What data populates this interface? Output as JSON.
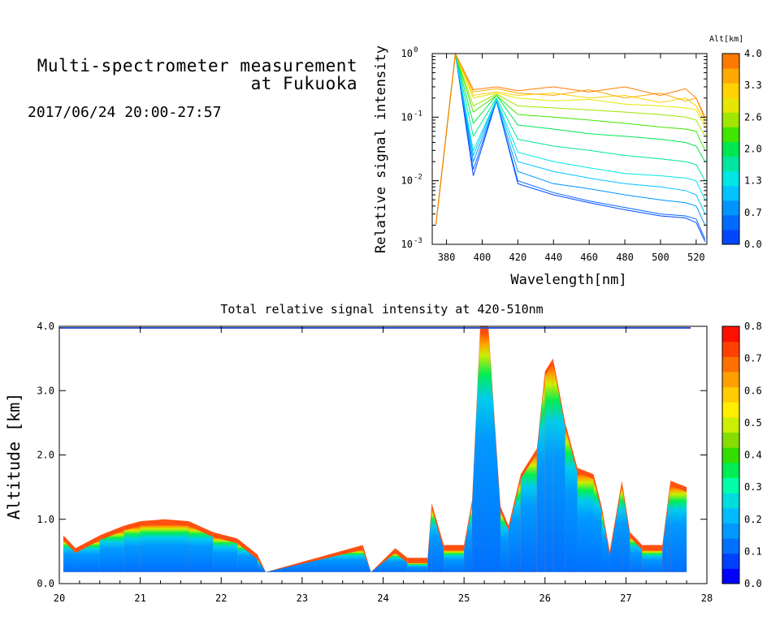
{
  "header": {
    "title_line1": "Multi-spectrometer measurement",
    "title_line2": "at Fukuoka",
    "datetime": "2017/06/24 20:00-27:57"
  },
  "colors": {
    "altitude_scale": [
      "#0047ff",
      "#006aff",
      "#0094ff",
      "#00c3ff",
      "#00e6e6",
      "#00e6a0",
      "#00e650",
      "#40e600",
      "#a0e600",
      "#e6e600",
      "#ffd200",
      "#ffaa00",
      "#ff7a00"
    ],
    "intensity_scale": [
      "#0000ff",
      "#0040ff",
      "#0070ff",
      "#0099ff",
      "#00bbff",
      "#00dddd",
      "#00ffaa",
      "#00ee55",
      "#33dd00",
      "#88dd00",
      "#ccee00",
      "#ffee00",
      "#ffcc00",
      "#ffa000",
      "#ff7000",
      "#ff4000",
      "#ff1000"
    ]
  },
  "chart_data": [
    {
      "type": "line",
      "title": "",
      "xlabel": "Wavelength[nm]",
      "ylabel": "Relative signal intensity",
      "yscale": "log",
      "xlim": [
        372,
        526
      ],
      "ylim": [
        0.001,
        1
      ],
      "xticks": [
        380,
        400,
        420,
        440,
        460,
        480,
        500,
        520
      ],
      "ytick_labels": {
        "base": "10",
        "exponents": [
          "0",
          "-1",
          "-2",
          "-3"
        ]
      },
      "colorbar": {
        "label": "Alt[km]",
        "tick_labels": [
          "4.0",
          "3.3",
          "2.6",
          "2.0",
          "1.3",
          "0.7",
          "0.0"
        ]
      },
      "x": [
        374,
        385,
        395,
        408,
        420,
        440,
        460,
        480,
        500,
        514,
        520,
        525
      ],
      "series": [
        {
          "alt": 0.0,
          "values": [
            0.002,
            1.0,
            0.012,
            0.18,
            0.009,
            0.006,
            0.0045,
            0.0035,
            0.0028,
            0.0026,
            0.0022,
            0.0011
          ]
        },
        {
          "alt": 0.3,
          "values": [
            0.002,
            1.0,
            0.015,
            0.18,
            0.01,
            0.0065,
            0.0048,
            0.0038,
            0.003,
            0.0028,
            0.0025,
            0.0012
          ]
        },
        {
          "alt": 0.6,
          "values": [
            0.002,
            1.0,
            0.02,
            0.18,
            0.014,
            0.009,
            0.0075,
            0.006,
            0.005,
            0.0045,
            0.004,
            0.002
          ]
        },
        {
          "alt": 0.9,
          "values": [
            0.002,
            1.0,
            0.025,
            0.19,
            0.02,
            0.014,
            0.011,
            0.009,
            0.008,
            0.007,
            0.006,
            0.003
          ]
        },
        {
          "alt": 1.2,
          "values": [
            0.002,
            1.0,
            0.03,
            0.19,
            0.028,
            0.02,
            0.016,
            0.013,
            0.012,
            0.011,
            0.01,
            0.005
          ]
        },
        {
          "alt": 1.6,
          "values": [
            0.002,
            1.0,
            0.05,
            0.2,
            0.045,
            0.035,
            0.03,
            0.025,
            0.022,
            0.02,
            0.018,
            0.01
          ]
        },
        {
          "alt": 1.9,
          "values": [
            0.002,
            1.0,
            0.08,
            0.22,
            0.075,
            0.065,
            0.055,
            0.05,
            0.045,
            0.04,
            0.035,
            0.02
          ]
        },
        {
          "alt": 2.3,
          "values": [
            0.002,
            1.0,
            0.12,
            0.22,
            0.11,
            0.1,
            0.09,
            0.08,
            0.07,
            0.065,
            0.06,
            0.03
          ]
        },
        {
          "alt": 2.7,
          "values": [
            0.002,
            1.0,
            0.15,
            0.23,
            0.15,
            0.14,
            0.13,
            0.12,
            0.11,
            0.1,
            0.09,
            0.05
          ]
        },
        {
          "alt": 3.0,
          "values": [
            0.002,
            1.0,
            0.2,
            0.24,
            0.2,
            0.18,
            0.19,
            0.16,
            0.15,
            0.14,
            0.13,
            0.07
          ]
        },
        {
          "alt": 3.3,
          "values": [
            0.002,
            1.0,
            0.22,
            0.25,
            0.22,
            0.24,
            0.2,
            0.22,
            0.17,
            0.2,
            0.15,
            0.08
          ]
        },
        {
          "alt": 3.7,
          "values": [
            0.002,
            1.0,
            0.25,
            0.28,
            0.24,
            0.22,
            0.27,
            0.2,
            0.24,
            0.18,
            0.2,
            0.09
          ]
        },
        {
          "alt": 4.0,
          "values": [
            0.002,
            1.0,
            0.27,
            0.3,
            0.26,
            0.3,
            0.25,
            0.3,
            0.22,
            0.28,
            0.2,
            0.1
          ]
        }
      ]
    },
    {
      "type": "heatmap",
      "title": "Total relative signal intensity at 420-510nm",
      "xlabel": "",
      "ylabel": "Altitude [km]",
      "xlim": [
        20,
        28
      ],
      "ylim": [
        0,
        4
      ],
      "xticks": [
        "20",
        "21",
        "22",
        "23",
        "24",
        "25",
        "26",
        "27",
        "28"
      ],
      "yticks": [
        "0.0",
        "1.0",
        "2.0",
        "3.0",
        "4.0"
      ],
      "colorbar": {
        "range": [
          0,
          0.8
        ],
        "tick_labels": [
          "0.8",
          "0.7",
          "0.6",
          "0.5",
          "0.4",
          "0.3",
          "0.2",
          "0.1",
          "0.0"
        ]
      },
      "column_height_profile_km": {
        "time_hours": [
          20.05,
          20.2,
          20.5,
          20.8,
          21.0,
          21.3,
          21.6,
          21.9,
          22.2,
          22.45,
          22.55,
          23.75,
          23.85,
          24.15,
          24.3,
          24.55,
          24.6,
          24.75,
          25.0,
          25.1,
          25.2,
          25.3,
          25.45,
          25.55,
          25.7,
          25.9,
          26.0,
          26.1,
          26.25,
          26.4,
          26.6,
          26.7,
          26.8,
          26.95,
          27.05,
          27.2,
          27.45,
          27.55,
          27.75
        ],
        "top_km": [
          0.75,
          0.55,
          0.75,
          0.9,
          0.97,
          1.0,
          0.97,
          0.8,
          0.7,
          0.45,
          0.0,
          0.6,
          0.0,
          0.55,
          0.4,
          0.4,
          1.25,
          0.6,
          0.6,
          1.3,
          4.0,
          4.0,
          1.2,
          0.9,
          1.7,
          2.1,
          3.3,
          3.5,
          2.5,
          1.8,
          1.7,
          1.2,
          0.5,
          1.6,
          0.8,
          0.6,
          0.6,
          1.6,
          1.5
        ]
      }
    }
  ]
}
